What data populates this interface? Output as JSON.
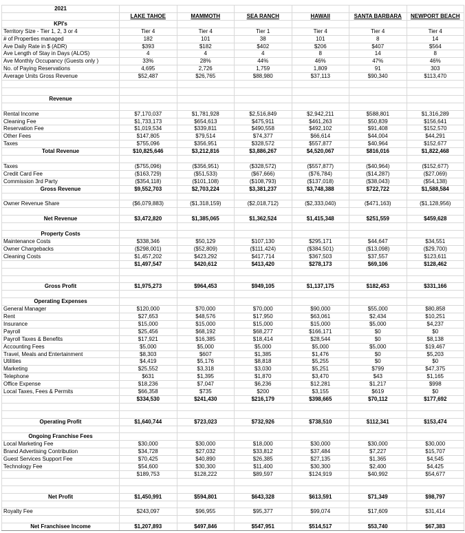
{
  "sheet": {
    "year": "2021",
    "columns": [
      "LAKE TAHOE",
      "MAMMOTH",
      "SEA RANCH",
      "HAWAII",
      "SANTA BARBARA",
      "NEWPORT BEACH"
    ],
    "rows": [
      {
        "t": "section",
        "label": "KPI's"
      },
      {
        "t": "item",
        "label": "Territory Size - Tier 1, 2, 3 or 4",
        "values": [
          "Tier 4",
          "Tier 4",
          "Tier 1",
          "Tier 4",
          "Tier 4",
          "Tier 4"
        ]
      },
      {
        "t": "item",
        "label": "# of Properties managed",
        "values": [
          "182",
          "101",
          "38",
          "101",
          "8",
          "14"
        ]
      },
      {
        "t": "item",
        "label": "Ave Daily Rate in $ (ADR)",
        "values": [
          "$393",
          "$182",
          "$402",
          "$206",
          "$407",
          "$564"
        ]
      },
      {
        "t": "item",
        "label": "Ave Length of Stay in Days (ALOS)",
        "values": [
          "4",
          "4",
          "4",
          "8",
          "14",
          "8"
        ]
      },
      {
        "t": "item",
        "label": "Ave Monthly Occupancy (Guests only )",
        "values": [
          "33%",
          "28%",
          "44%",
          "46%",
          "47%",
          "46%"
        ]
      },
      {
        "t": "item",
        "label": "No. of Paying Reservations",
        "values": [
          "4,695",
          "2,726",
          "1,759",
          "1,809",
          "91",
          "303"
        ]
      },
      {
        "t": "item",
        "label": "Average Units Gross Revenue",
        "values": [
          "$52,487",
          "$26,765",
          "$88,980",
          "$37,113",
          "$90,340",
          "$113,470"
        ]
      },
      {
        "t": "blank"
      },
      {
        "t": "blank"
      },
      {
        "t": "section",
        "label": "Revenue"
      },
      {
        "t": "blank"
      },
      {
        "t": "item",
        "label": "Rental Income",
        "values": [
          "$7,170,037",
          "$1,781,928",
          "$2,516,849",
          "$2,942,211",
          "$588,801",
          "$1,316,289"
        ]
      },
      {
        "t": "item",
        "label": "Cleaning Fee",
        "values": [
          "$1,733,173",
          "$654,613",
          "$475,911",
          "$461,263",
          "$50,839",
          "$156,641"
        ]
      },
      {
        "t": "item",
        "label": "Reservation Fee",
        "values": [
          "$1,019,534",
          "$339,811",
          "$490,558",
          "$492,102",
          "$91,408",
          "$152,570"
        ]
      },
      {
        "t": "item",
        "label": "Other Fees",
        "values": [
          "$147,805",
          "$79,514",
          "$74,377",
          "$66,614",
          "$44,004",
          "$44,291"
        ]
      },
      {
        "t": "item",
        "label": "Taxes",
        "values": [
          "$755,096",
          "$356,951",
          "$328,572",
          "$557,877",
          "$40,964",
          "$152,677"
        ]
      },
      {
        "t": "total",
        "label": "Total Revenue",
        "values": [
          "$10,825,646",
          "$3,212,816",
          "$3,886,267",
          "$4,520,067",
          "$816,016",
          "$1,822,468"
        ]
      },
      {
        "t": "blank"
      },
      {
        "t": "item",
        "label": "Taxes",
        "values": [
          "($755,096)",
          "($356,951)",
          "($328,572)",
          "($557,877)",
          "($40,964)",
          "($152,677)"
        ]
      },
      {
        "t": "item",
        "label": "Credit Card Fee",
        "values": [
          "($163,729)",
          "($51,533)",
          "($67,666)",
          "($76,784)",
          "($14,287)",
          "($27,069)"
        ]
      },
      {
        "t": "item",
        "label": "Commission 3rd Party",
        "values": [
          "($354,118)",
          "($101,108)",
          "($108,793)",
          "($137,018)",
          "($38,043)",
          "($54,138)"
        ]
      },
      {
        "t": "total",
        "label": "Gross Revenue",
        "values": [
          "$9,552,703",
          "$2,703,224",
          "$3,381,237",
          "$3,748,388",
          "$722,722",
          "$1,588,584"
        ]
      },
      {
        "t": "blank"
      },
      {
        "t": "item",
        "label": "Owner Revenue Share",
        "values": [
          "($6,079,883)",
          "($1,318,159)",
          "($2,018,712)",
          "($2,333,040)",
          "($471,163)",
          "($1,128,956)"
        ]
      },
      {
        "t": "blank"
      },
      {
        "t": "total",
        "label": "Net Revenue",
        "values": [
          "$3,472,820",
          "$1,385,065",
          "$1,362,524",
          "$1,415,348",
          "$251,559",
          "$459,628"
        ]
      },
      {
        "t": "blank"
      },
      {
        "t": "section",
        "label": "Property Costs"
      },
      {
        "t": "item",
        "label": "Maintenance Costs",
        "values": [
          "$338,346",
          "$50,129",
          "$107,130",
          "$295,171",
          "$44,647",
          "$34,551"
        ]
      },
      {
        "t": "item",
        "label": "Owner Chargebacks",
        "values": [
          "($298,001)",
          "($52,809)",
          "($111,424)",
          "($384,501)",
          "($13,098)",
          "($29,700)"
        ]
      },
      {
        "t": "item",
        "label": "Cleaning Costs",
        "values": [
          "$1,457,202",
          "$423,292",
          "$417,714",
          "$367,503",
          "$37,557",
          "$123,611"
        ]
      },
      {
        "t": "subtotal",
        "bold": true,
        "label": "",
        "values": [
          "$1,497,547",
          "$420,612",
          "$413,420",
          "$278,173",
          "$69,106",
          "$128,462"
        ]
      },
      {
        "t": "blank"
      },
      {
        "t": "blank"
      },
      {
        "t": "total",
        "label": "Gross Profit",
        "values": [
          "$1,975,273",
          "$964,453",
          "$949,105",
          "$1,137,175",
          "$182,453",
          "$331,166"
        ]
      },
      {
        "t": "blank"
      },
      {
        "t": "section",
        "label": "Operating Expenses"
      },
      {
        "t": "item",
        "label": "General Manager",
        "values": [
          "$120,000",
          "$70,000",
          "$70,000",
          "$90,000",
          "$55,000",
          "$80,858"
        ]
      },
      {
        "t": "item",
        "label": "Rent",
        "values": [
          "$27,653",
          "$48,576",
          "$17,950",
          "$63,061",
          "$2,434",
          "$10,251"
        ]
      },
      {
        "t": "item",
        "label": "Insurance",
        "values": [
          "$15,000",
          "$15,000",
          "$15,000",
          "$15,000",
          "$5,000",
          "$4,237"
        ]
      },
      {
        "t": "item",
        "label": "Payroll",
        "values": [
          "$25,456",
          "$68,192",
          "$68,277",
          "$166,171",
          "$0",
          "$0"
        ]
      },
      {
        "t": "item",
        "label": "Payroll Taxes & Benefits",
        "values": [
          "$17,921",
          "$16,385",
          "$18,414",
          "$28,544",
          "$0",
          "$8,138"
        ]
      },
      {
        "t": "item",
        "label": "Accounting Fees",
        "values": [
          "$5,000",
          "$5,000",
          "$5,000",
          "$5,000",
          "$5,000",
          "$19,467"
        ]
      },
      {
        "t": "item",
        "label": "Travel, Meals and Entertainment",
        "values": [
          "$8,303",
          "$607",
          "$1,385",
          "$1,476",
          "$0",
          "$5,203"
        ]
      },
      {
        "t": "item",
        "label": "Utilities",
        "values": [
          "$4,419",
          "$5,176",
          "$8,818",
          "$5,255",
          "$0",
          "$0"
        ]
      },
      {
        "t": "item",
        "label": "Marketing",
        "values": [
          "$25,552",
          "$3,318",
          "$3,030",
          "$5,251",
          "$799",
          "$47,375"
        ]
      },
      {
        "t": "item",
        "label": "Telephone",
        "values": [
          "$631",
          "$1,395",
          "$1,870",
          "$3,470",
          "$43",
          "$1,165"
        ]
      },
      {
        "t": "item",
        "label": "Office Expense",
        "values": [
          "$18,236",
          "$7,047",
          "$6,236",
          "$12,281",
          "$1,217",
          "$998"
        ]
      },
      {
        "t": "item",
        "label": "Local Taxes, Fees & Permits",
        "values": [
          "$66,358",
          "$735",
          "$200",
          "$3,155",
          "$619",
          "$0"
        ]
      },
      {
        "t": "subtotal",
        "bold": true,
        "label": "",
        "values": [
          "$334,530",
          "$241,430",
          "$216,179",
          "$398,665",
          "$70,112",
          "$177,692"
        ]
      },
      {
        "t": "blank"
      },
      {
        "t": "blank"
      },
      {
        "t": "total",
        "label": "Operating Profit",
        "values": [
          "$1,640,744",
          "$723,023",
          "$732,926",
          "$738,510",
          "$112,341",
          "$153,474"
        ]
      },
      {
        "t": "blank"
      },
      {
        "t": "section",
        "label": "Ongoing Franchise Fees"
      },
      {
        "t": "item",
        "label": "Local Marketing Fee",
        "values": [
          "$30,000",
          "$30,000",
          "$18,000",
          "$30,000",
          "$30,000",
          "$30,000"
        ]
      },
      {
        "t": "item",
        "label": "Brand Advertising Contribution",
        "values": [
          "$34,728",
          "$27,032",
          "$33,812",
          "$37,484",
          "$7,227",
          "$15,707"
        ]
      },
      {
        "t": "item",
        "label": "Guest Services Support Fee",
        "values": [
          "$70,425",
          "$40,890",
          "$26,385",
          "$27,135",
          "$1,365",
          "$4,545"
        ]
      },
      {
        "t": "item",
        "label": "Technology Fee",
        "values": [
          "$54,600",
          "$30,300",
          "$11,400",
          "$30,300",
          "$2,400",
          "$4,425"
        ]
      },
      {
        "t": "subtotal",
        "bold": false,
        "label": "",
        "values": [
          "$189,753",
          "$128,222",
          "$89,597",
          "$124,919",
          "$40,992",
          "$54,677"
        ]
      },
      {
        "t": "blank"
      },
      {
        "t": "blank"
      },
      {
        "t": "total",
        "label": "Net Profit",
        "values": [
          "$1,450,991",
          "$594,801",
          "$643,328",
          "$613,591",
          "$71,349",
          "$98,797"
        ]
      },
      {
        "t": "blank"
      },
      {
        "t": "item",
        "label": "Royalty Fee",
        "values": [
          "$243,097",
          "$96,955",
          "$95,377",
          "$99,074",
          "$17,609",
          "$31,414"
        ]
      },
      {
        "t": "blank"
      },
      {
        "t": "total",
        "grand": true,
        "label": "Net Franchisee Income",
        "values": [
          "$1,207,893",
          "$497,846",
          "$547,951",
          "$514,517",
          "$53,740",
          "$67,383"
        ]
      }
    ]
  }
}
